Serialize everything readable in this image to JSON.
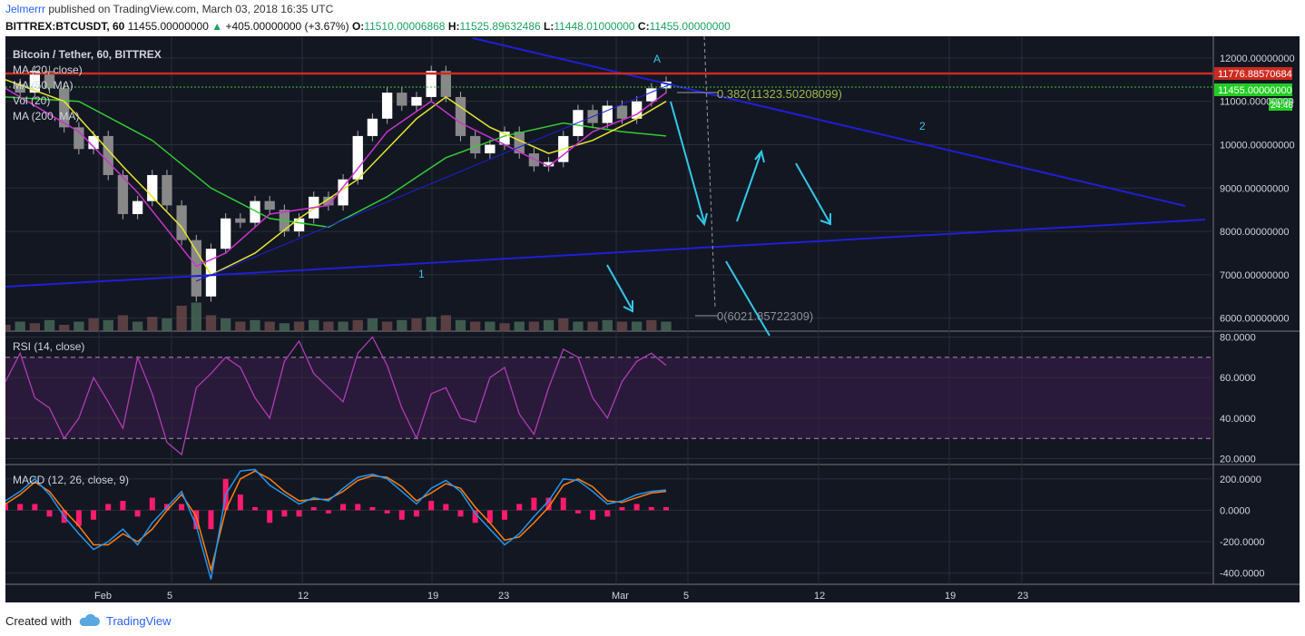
{
  "header": {
    "author": "Jelmerrr",
    "published": "published on TradingView.com, March 03, 2018 16:35 UTC",
    "symbol": "BITTREX:BTCUSDT, 60",
    "last": "11455.00000000",
    "up_arrow": "▲",
    "change": "+405.00000000 (+3.67%)",
    "o_label": "O:",
    "o": "11510.00006868",
    "h_label": "H:",
    "h": "11525.89632486",
    "l_label": "L:",
    "l": "11448.01000000",
    "c_label": "C:",
    "c": "11455.00000000"
  },
  "legend": {
    "title": "Bitcoin / Tether, 60, BITTREX",
    "ma20": "MA (20, close)",
    "ma50": "MA (50, MA)",
    "vol": "Vol (20)",
    "ma200": "MA (200, MA)",
    "rsi": "RSI (14, close)",
    "macd": "MACD (12, 26, close, 9)"
  },
  "labels": {
    "pt_a": "A",
    "pt_1": "1",
    "pt_2": "2",
    "fib_382": "0.382(11323.50208099)",
    "fib_0": "0(6021.85722309)"
  },
  "price_tags": {
    "resistance": "11776.88570684",
    "last": "11455.00000000",
    "timer": "24:46"
  },
  "footer": {
    "created": "Created with",
    "brand": "TradingView",
    "logo": "tradingview-cloud-icon"
  },
  "colors": {
    "bg": "#131722",
    "grid": "#2a2e39",
    "axis_text": "#d1d4dc",
    "up": "#ffffff",
    "down": "#888888",
    "ma20": "#cc33cc",
    "ma50": "#e6e633",
    "ma200": "#33cc33",
    "trend": "#1f1fd6",
    "resistance": "#cc2a1f",
    "arrow": "#33c8e8",
    "rsi": "#b03bb8",
    "macd": "#2196f3",
    "signal": "#ff7f0e",
    "hist": "#ff1a6c"
  },
  "chart_data": [
    {
      "type": "line",
      "title": "Bitcoin / Tether, 60, BITTREX",
      "x_ticks": [
        "Feb",
        "5",
        "12",
        "19",
        "23",
        "Mar",
        "5",
        "12",
        "19",
        "23"
      ],
      "y_ticks": [
        "12000.00000000",
        "11000.00000000",
        "10000.00000000",
        "9000.00000000",
        "8000.00000000",
        "7000.00000000",
        "6000.00000000"
      ],
      "ylim": [
        5700,
        12500
      ],
      "price_path": [
        [
          0,
          11400
        ],
        [
          1,
          11200
        ],
        [
          2,
          11700
        ],
        [
          3,
          11300
        ],
        [
          4,
          10400
        ],
        [
          5,
          9900
        ],
        [
          6,
          10200
        ],
        [
          7,
          9300
        ],
        [
          8,
          8400
        ],
        [
          9,
          8700
        ],
        [
          10,
          9300
        ],
        [
          11,
          8600
        ],
        [
          12,
          7800
        ],
        [
          13,
          6500
        ],
        [
          14,
          7600
        ],
        [
          15,
          8300
        ],
        [
          16,
          8200
        ],
        [
          17,
          8700
        ],
        [
          18,
          8500
        ],
        [
          19,
          8000
        ],
        [
          20,
          8300
        ],
        [
          21,
          8800
        ],
        [
          22,
          8600
        ],
        [
          23,
          9200
        ],
        [
          24,
          10200
        ],
        [
          25,
          10600
        ],
        [
          26,
          11200
        ],
        [
          27,
          10900
        ],
        [
          28,
          11100
        ],
        [
          29,
          11700
        ],
        [
          30,
          11100
        ],
        [
          31,
          10200
        ],
        [
          32,
          9800
        ],
        [
          33,
          10000
        ],
        [
          34,
          10300
        ],
        [
          35,
          9800
        ],
        [
          36,
          9500
        ],
        [
          37,
          9600
        ],
        [
          38,
          10200
        ],
        [
          39,
          10800
        ],
        [
          40,
          10500
        ],
        [
          41,
          10900
        ],
        [
          42,
          10600
        ],
        [
          43,
          11000
        ],
        [
          44,
          11300
        ],
        [
          45,
          11455
        ]
      ],
      "ma20_path": [
        [
          0,
          11300
        ],
        [
          5,
          10300
        ],
        [
          9,
          8900
        ],
        [
          13,
          7200
        ],
        [
          15,
          7500
        ],
        [
          18,
          8400
        ],
        [
          22,
          8600
        ],
        [
          26,
          10300
        ],
        [
          29,
          11000
        ],
        [
          31,
          10500
        ],
        [
          34,
          10000
        ],
        [
          37,
          9500
        ],
        [
          40,
          10300
        ],
        [
          43,
          10700
        ],
        [
          45,
          11200
        ]
      ],
      "ma50_path": [
        [
          0,
          11500
        ],
        [
          4,
          11000
        ],
        [
          8,
          9500
        ],
        [
          12,
          8100
        ],
        [
          14,
          7000
        ],
        [
          17,
          7500
        ],
        [
          20,
          8300
        ],
        [
          24,
          9200
        ],
        [
          28,
          10600
        ],
        [
          30,
          11100
        ],
        [
          33,
          10400
        ],
        [
          37,
          9800
        ],
        [
          40,
          10100
        ],
        [
          43,
          10600
        ],
        [
          45,
          11000
        ]
      ],
      "ma200_path": [
        [
          0,
          11100
        ],
        [
          5,
          11000
        ],
        [
          10,
          10100
        ],
        [
          14,
          9000
        ],
        [
          18,
          8300
        ],
        [
          22,
          8100
        ],
        [
          26,
          8800
        ],
        [
          30,
          9700
        ],
        [
          34,
          10200
        ],
        [
          38,
          10500
        ],
        [
          42,
          10300
        ],
        [
          45,
          10200
        ]
      ],
      "volume": [
        0.2,
        0.3,
        0.25,
        0.35,
        0.2,
        0.3,
        0.4,
        0.35,
        0.5,
        0.3,
        0.45,
        0.4,
        0.8,
        0.9,
        0.5,
        0.4,
        0.3,
        0.35,
        0.3,
        0.25,
        0.3,
        0.35,
        0.3,
        0.3,
        0.35,
        0.4,
        0.3,
        0.35,
        0.4,
        0.45,
        0.5,
        0.35,
        0.3,
        0.3,
        0.25,
        0.3,
        0.3,
        0.35,
        0.4,
        0.3,
        0.3,
        0.35,
        0.3,
        0.3,
        0.35,
        0.3
      ]
    },
    {
      "type": "line",
      "title": "RSI (14, close)",
      "y_ticks": [
        "80.0000",
        "60.0000",
        "40.0000",
        "20.0000"
      ],
      "ylim": [
        18,
        82
      ],
      "bands": [
        30,
        70
      ],
      "values": [
        58,
        72,
        50,
        45,
        30,
        40,
        60,
        48,
        35,
        70,
        52,
        28,
        22,
        55,
        62,
        70,
        65,
        50,
        40,
        68,
        78,
        62,
        55,
        48,
        72,
        80,
        66,
        45,
        30,
        52,
        55,
        40,
        38,
        60,
        65,
        42,
        32,
        55,
        74,
        70,
        50,
        40,
        58,
        68,
        72,
        66
      ]
    },
    {
      "type": "line",
      "title": "MACD (12, 26, close, 9)",
      "y_ticks": [
        "200.0000",
        "0.0000",
        "-200.0000",
        "-400.0000"
      ],
      "ylim": [
        -460,
        280
      ],
      "macd": [
        60,
        120,
        200,
        100,
        -40,
        -150,
        -250,
        -200,
        -120,
        -220,
        -80,
        20,
        120,
        -100,
        -440,
        100,
        250,
        260,
        160,
        100,
        40,
        80,
        60,
        140,
        210,
        230,
        200,
        120,
        40,
        140,
        190,
        120,
        -20,
        -120,
        -220,
        -150,
        -40,
        60,
        200,
        190,
        120,
        40,
        60,
        100,
        120,
        130
      ],
      "signal": [
        40,
        100,
        180,
        120,
        0,
        -100,
        -220,
        -220,
        -150,
        -200,
        -120,
        0,
        100,
        -40,
        -380,
        0,
        200,
        250,
        200,
        120,
        60,
        70,
        70,
        120,
        190,
        220,
        210,
        150,
        60,
        110,
        170,
        140,
        20,
        -80,
        -190,
        -170,
        -80,
        20,
        160,
        200,
        150,
        60,
        50,
        80,
        110,
        120
      ]
    }
  ]
}
